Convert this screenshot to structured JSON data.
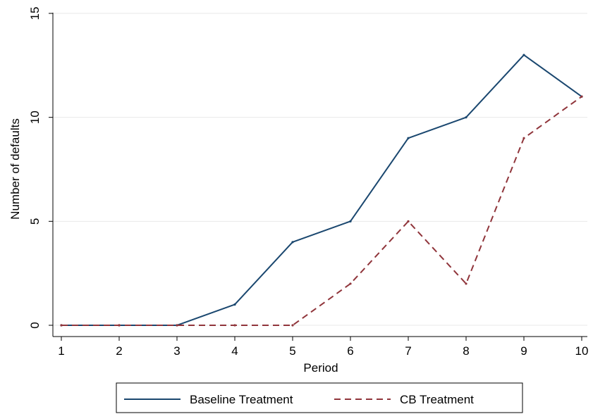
{
  "chart_data": {
    "type": "line",
    "title": "",
    "xlabel": "Period",
    "ylabel": "Number of defaults",
    "x": [
      1,
      2,
      3,
      4,
      5,
      6,
      7,
      8,
      9,
      10
    ],
    "xlim": [
      1,
      10
    ],
    "ylim": [
      0,
      15
    ],
    "xticks": [
      "1",
      "2",
      "3",
      "4",
      "5",
      "6",
      "7",
      "8",
      "9",
      "10"
    ],
    "yticks": [
      "0",
      "5",
      "10",
      "15"
    ],
    "grid": true,
    "legend_position": "bottom",
    "series": [
      {
        "name": "Baseline Treatment",
        "values": [
          0,
          0,
          0,
          1,
          4,
          5,
          9,
          10,
          13,
          11
        ],
        "color": "#1a476f",
        "style": "solid"
      },
      {
        "name": "CB Treatment",
        "values": [
          0,
          0,
          0,
          0,
          0,
          2,
          5,
          2,
          9,
          11
        ],
        "color": "#90353b",
        "style": "dashed"
      }
    ]
  }
}
